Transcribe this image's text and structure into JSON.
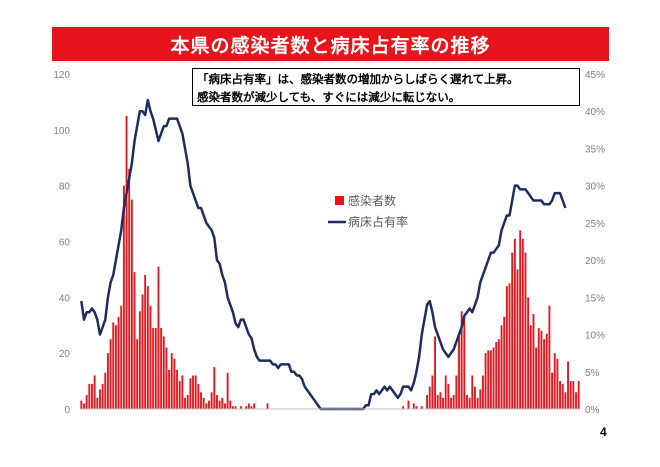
{
  "slide": {
    "title": "本県の感染者数と病床占有率の推移",
    "page_number": "4"
  },
  "annotation": {
    "line1": "「病床占有率」は、感染者数の増加からしばらく遅れて上昇。",
    "line2": "感染者数が減少しても、すぐには減少に転じない。"
  },
  "chart_data": {
    "type": "bar",
    "series": [
      {
        "name": "感染者数",
        "type": "bar",
        "axis": "left",
        "color": "#e8141b",
        "values": [
          3,
          2,
          5,
          9,
          9,
          12,
          4,
          7,
          9,
          13,
          20,
          25,
          31,
          30,
          33,
          37,
          80,
          105,
          86,
          75,
          49,
          25,
          35,
          41,
          48,
          44,
          37,
          29,
          29,
          51,
          29,
          26,
          22,
          14,
          20,
          18,
          14,
          10,
          12,
          4,
          5,
          11,
          12,
          12,
          9,
          6,
          4,
          2,
          3,
          6,
          15,
          5,
          3,
          4,
          2,
          13,
          3,
          1,
          1,
          0,
          1,
          0,
          1,
          2,
          1,
          2,
          0,
          0,
          0,
          0,
          2,
          0,
          0,
          0,
          0,
          0,
          0,
          0,
          0,
          0,
          0,
          0,
          0,
          0,
          0,
          0,
          0,
          0,
          0,
          0,
          0,
          0,
          0,
          0,
          0,
          0,
          0,
          0,
          0,
          0,
          0,
          0,
          0,
          0,
          0,
          0,
          0,
          0,
          0,
          0,
          0,
          0,
          0,
          0,
          0,
          0,
          0,
          0,
          0,
          0,
          0,
          1,
          0,
          3,
          0,
          2,
          1,
          0,
          1,
          0,
          5,
          8,
          12,
          26,
          5,
          6,
          4,
          12,
          9,
          4,
          5,
          12,
          26,
          35,
          33,
          5,
          4,
          12,
          8,
          4,
          7,
          12,
          20,
          21,
          21,
          22,
          24,
          25,
          30,
          33,
          44,
          45,
          56,
          61,
          50,
          64,
          61,
          56,
          40,
          30,
          34,
          22,
          29,
          28,
          25,
          27,
          37,
          13,
          20,
          18,
          10,
          9,
          6,
          17,
          10,
          10,
          6,
          10
        ]
      },
      {
        "name": "病床占有率",
        "type": "line",
        "axis": "right",
        "color": "#1f2d5e",
        "values": [
          14.5,
          12,
          13,
          13,
          13.5,
          13,
          12,
          10,
          11,
          12,
          15,
          17,
          18,
          20,
          22,
          24,
          27,
          29,
          31,
          33,
          36,
          38,
          40,
          40,
          39.5,
          41.5,
          40,
          39,
          37.5,
          36,
          37,
          38,
          38,
          39,
          39,
          39,
          39,
          38,
          37,
          35,
          33,
          30,
          29,
          28,
          27,
          27,
          26,
          25,
          24.5,
          24,
          23,
          20,
          19.5,
          18,
          17,
          15,
          14,
          13,
          11.5,
          11,
          12,
          12,
          11,
          10,
          9.5,
          8,
          7,
          6.5,
          6.5,
          6.5,
          6.5,
          6.5,
          6,
          6,
          5.5,
          6,
          6,
          6,
          6,
          5,
          5,
          4.5,
          4.5,
          4,
          3,
          2.5,
          2,
          1.5,
          1,
          0.5,
          0,
          0,
          0,
          0,
          0,
          0,
          0,
          0,
          0,
          0,
          0,
          0,
          0,
          0,
          0,
          0,
          0,
          0.5,
          0.5,
          2,
          2,
          2.5,
          2,
          2.5,
          3,
          2.5,
          3,
          2.5,
          2,
          1.5,
          2,
          3,
          3,
          3,
          2.5,
          3.5,
          5,
          7,
          10,
          12,
          14,
          14.5,
          13,
          11,
          10,
          9,
          8,
          7.5,
          7,
          7.5,
          8,
          9,
          10,
          11,
          12.5,
          13,
          13.5,
          13,
          14,
          15,
          17,
          18,
          19,
          20,
          21,
          21,
          21.5,
          22,
          24,
          25,
          26,
          26,
          28,
          30,
          30,
          29.5,
          29.5,
          29.5,
          29,
          28.5,
          28,
          28,
          28,
          28,
          27.5,
          27.5,
          27.5,
          28,
          29,
          29,
          29,
          28,
          27
        ]
      }
    ],
    "y_left": {
      "min": 0,
      "max": 120,
      "ticks": [
        "0",
        "20",
        "40",
        "60",
        "80",
        "100",
        "120"
      ]
    },
    "y_right": {
      "min": 0,
      "max": 45,
      "ticks": [
        "0%",
        "5%",
        "10%",
        "15%",
        "20%",
        "25%",
        "30%",
        "35%",
        "40%",
        "45%"
      ]
    },
    "xlabel": "",
    "ylabel": "",
    "grid": false,
    "legend_position": "center"
  }
}
